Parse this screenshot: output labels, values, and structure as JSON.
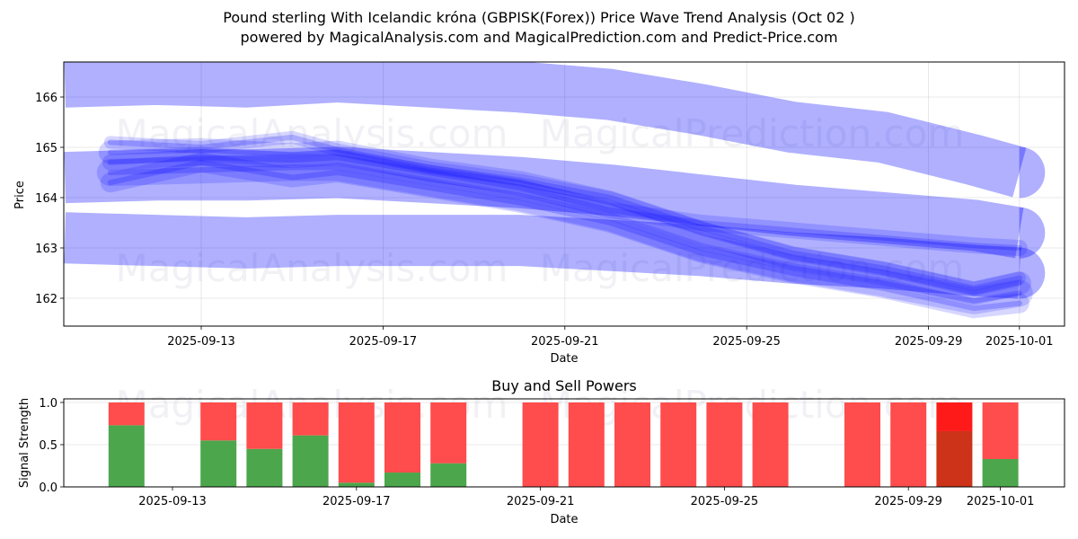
{
  "header": {
    "title_line1": "Pound sterling With Icelandic króna (GBPISK(Forex)) Price Wave Trend Analysis (Oct 02 )",
    "title_line2": "powered by MagicalAnalysis.com and MagicalPrediction.com and Predict-Price.com"
  },
  "watermarks": [
    "MagicalAnalysis.com",
    "MagicalPrediction.com"
  ],
  "colors": {
    "band": "#0000ff",
    "buy": "#4ca64c",
    "sell": "#ff4c4c",
    "sell_strong": "#ff1a1a",
    "buy_dark": "#cc3319"
  },
  "chart_data": [
    {
      "type": "line",
      "title": "Price Wave Trend Analysis",
      "xlabel": "Date",
      "ylabel": "Price",
      "ylim": [
        161.45,
        166.7
      ],
      "xlim": [
        "2025-09-10",
        "2025-10-02"
      ],
      "grid": true,
      "x_ticks": [
        "2025-09-13",
        "2025-09-17",
        "2025-09-21",
        "2025-09-25",
        "2025-09-29",
        "2025-10-01"
      ],
      "y_ticks": [
        162,
        163,
        164,
        165,
        166
      ],
      "bands": [
        {
          "name": "upper-band",
          "x": [
            "2025-09-10",
            "2025-09-12",
            "2025-09-14",
            "2025-09-16",
            "2025-09-18",
            "2025-09-20",
            "2025-09-22",
            "2025-09-24",
            "2025-09-26",
            "2025-09-28",
            "2025-09-30",
            "2025-10-01"
          ],
          "y": [
            166.3,
            166.35,
            166.3,
            166.4,
            166.3,
            166.2,
            166.05,
            165.75,
            165.4,
            165.2,
            164.75,
            164.5
          ]
        },
        {
          "name": "middle-band",
          "x": [
            "2025-09-10",
            "2025-09-12",
            "2025-09-14",
            "2025-09-16",
            "2025-09-18",
            "2025-09-20",
            "2025-09-22",
            "2025-09-24",
            "2025-09-26",
            "2025-09-28",
            "2025-09-30",
            "2025-10-01"
          ],
          "y": [
            164.4,
            164.45,
            164.45,
            164.5,
            164.4,
            164.3,
            164.15,
            163.95,
            163.75,
            163.6,
            163.45,
            163.3
          ]
        },
        {
          "name": "lower-band",
          "x": [
            "2025-09-10",
            "2025-09-12",
            "2025-09-14",
            "2025-09-16",
            "2025-09-18",
            "2025-09-20",
            "2025-09-22",
            "2025-09-24",
            "2025-09-26",
            "2025-09-28",
            "2025-09-30",
            "2025-10-01"
          ],
          "y": [
            163.2,
            163.15,
            163.1,
            163.15,
            163.15,
            163.15,
            163.05,
            162.95,
            162.8,
            162.7,
            162.55,
            162.5
          ]
        }
      ],
      "series": [
        {
          "name": "wave-1",
          "x": [
            "2025-09-11",
            "2025-09-13",
            "2025-09-15",
            "2025-09-16",
            "2025-09-18",
            "2025-09-20",
            "2025-09-22",
            "2025-09-24",
            "2025-09-26",
            "2025-09-28",
            "2025-09-30",
            "2025-10-01"
          ],
          "y": [
            164.9,
            164.95,
            164.85,
            164.9,
            164.55,
            164.3,
            163.9,
            163.3,
            162.8,
            162.5,
            162.1,
            162.3
          ]
        },
        {
          "name": "wave-2",
          "x": [
            "2025-09-11",
            "2025-09-13",
            "2025-09-15",
            "2025-09-16",
            "2025-09-18",
            "2025-09-20",
            "2025-09-22",
            "2025-09-24",
            "2025-09-26",
            "2025-09-28",
            "2025-09-30",
            "2025-10-01"
          ],
          "y": [
            164.7,
            164.8,
            164.75,
            164.8,
            164.5,
            164.2,
            163.75,
            163.5,
            163.35,
            163.2,
            163.05,
            163.0
          ]
        },
        {
          "name": "wave-3",
          "x": [
            "2025-09-11",
            "2025-09-13",
            "2025-09-15",
            "2025-09-16",
            "2025-09-18",
            "2025-09-20",
            "2025-09-22",
            "2025-09-24",
            "2025-09-26",
            "2025-09-28",
            "2025-09-30",
            "2025-10-01"
          ],
          "y": [
            164.5,
            164.55,
            164.6,
            164.6,
            164.3,
            164.0,
            163.6,
            163.0,
            162.6,
            162.3,
            161.95,
            162.1
          ]
        },
        {
          "name": "wave-4",
          "x": [
            "2025-09-11",
            "2025-09-13",
            "2025-09-15",
            "2025-09-16",
            "2025-09-18",
            "2025-09-20",
            "2025-09-22",
            "2025-09-24",
            "2025-09-26",
            "2025-09-28",
            "2025-09-30",
            "2025-10-01"
          ],
          "y": [
            165.1,
            165.0,
            165.2,
            164.95,
            164.6,
            164.35,
            164.0,
            163.4,
            162.9,
            162.6,
            162.2,
            162.4
          ]
        },
        {
          "name": "wave-5",
          "x": [
            "2025-09-11",
            "2025-09-13",
            "2025-09-15",
            "2025-09-16",
            "2025-09-18",
            "2025-09-20",
            "2025-09-22",
            "2025-09-24",
            "2025-09-26",
            "2025-09-28",
            "2025-09-30",
            "2025-10-01"
          ],
          "y": [
            164.3,
            164.7,
            164.4,
            164.5,
            164.2,
            163.9,
            163.5,
            162.9,
            162.5,
            162.2,
            161.8,
            161.9
          ]
        }
      ]
    },
    {
      "type": "bar",
      "title": "Buy and Sell Powers",
      "xlabel": "Date",
      "ylabel": "Signal Strength",
      "ylim": [
        0,
        1.05
      ],
      "y_ticks": [
        "0.0",
        "0.5",
        "1.0"
      ],
      "x_ticks": [
        "2025-09-13",
        "2025-09-17",
        "2025-09-21",
        "2025-09-25",
        "2025-09-29",
        "2025-10-01"
      ],
      "stacked": true,
      "categories": [
        "2025-09-12",
        "2025-09-14",
        "2025-09-15",
        "2025-09-16",
        "2025-09-17",
        "2025-09-18",
        "2025-09-19",
        "2025-09-21",
        "2025-09-22",
        "2025-09-23",
        "2025-09-24",
        "2025-09-25",
        "2025-09-26",
        "2025-09-28",
        "2025-09-29",
        "2025-09-30",
        "2025-10-01"
      ],
      "series": [
        {
          "name": "Buy",
          "values": [
            0.73,
            0.55,
            0.45,
            0.61,
            0.05,
            0.17,
            0.28,
            0,
            0,
            0,
            0,
            0,
            0,
            0,
            0,
            0.66,
            0.33
          ]
        },
        {
          "name": "Sell",
          "values": [
            0.27,
            0.45,
            0.55,
            0.39,
            0.95,
            0.83,
            0.72,
            1,
            1,
            1,
            1,
            1,
            1,
            1,
            1,
            0.34,
            0.67
          ]
        }
      ],
      "highlight": {
        "category": "2025-09-30",
        "buy_color": "#cc3319",
        "sell_color": "#ff1a1a"
      }
    }
  ]
}
